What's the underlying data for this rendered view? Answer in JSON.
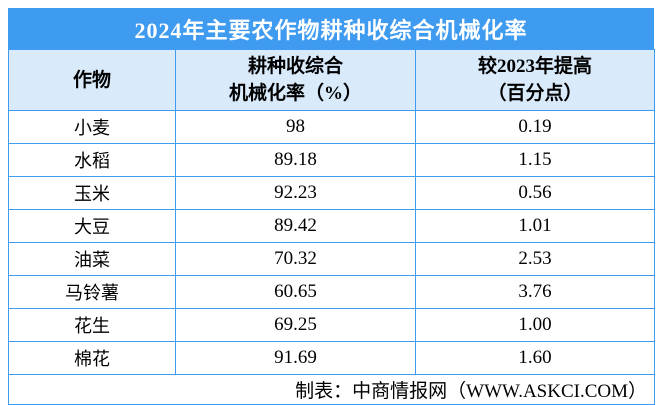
{
  "title": "2024年主要农作物耕种收综合机械化率",
  "colors": {
    "title_bar_blue": "#3F9BF0",
    "header_row_blue": "#D9EAFB",
    "grid_border_blue": "#3F9BF0",
    "title_text": "#FFFFFF",
    "body_text": "#000000"
  },
  "table": {
    "headers": {
      "crop": "作物",
      "rate_line1": "耕种收综合",
      "rate_line2": "机械化率（%）",
      "increase_line1": "较2023年提高",
      "increase_line2": "（百分点）"
    },
    "rows": [
      {
        "crop": "小麦",
        "rate": "98",
        "increase": "0.19"
      },
      {
        "crop": "水稻",
        "rate": "89.18",
        "increase": "1.15"
      },
      {
        "crop": "玉米",
        "rate": "92.23",
        "increase": "0.56"
      },
      {
        "crop": "大豆",
        "rate": "89.42",
        "increase": "1.01"
      },
      {
        "crop": "油菜",
        "rate": "70.32",
        "increase": "2.53"
      },
      {
        "crop": "马铃薯",
        "rate": "60.65",
        "increase": "3.76"
      },
      {
        "crop": "花生",
        "rate": "69.25",
        "increase": "1.00"
      },
      {
        "crop": "棉花",
        "rate": "91.69",
        "increase": "1.60"
      }
    ]
  },
  "footer": {
    "credit": "制表：中商情报网（WWW.ASKCI.COM）"
  },
  "chart_data": {
    "type": "table",
    "title": "2024年主要农作物耕种收综合机械化率",
    "columns": [
      "作物",
      "耕种收综合机械化率（%）",
      "较2023年提高（百分点）"
    ],
    "rows": [
      [
        "小麦",
        98,
        0.19
      ],
      [
        "水稻",
        89.18,
        1.15
      ],
      [
        "玉米",
        92.23,
        0.56
      ],
      [
        "大豆",
        89.42,
        1.01
      ],
      [
        "油菜",
        70.32,
        2.53
      ],
      [
        "马铃薯",
        60.65,
        3.76
      ],
      [
        "花生",
        69.25,
        1.0
      ],
      [
        "棉花",
        91.69,
        1.6
      ]
    ],
    "source_note": "制表：中商情报网（WWW.ASKCI.COM）"
  }
}
